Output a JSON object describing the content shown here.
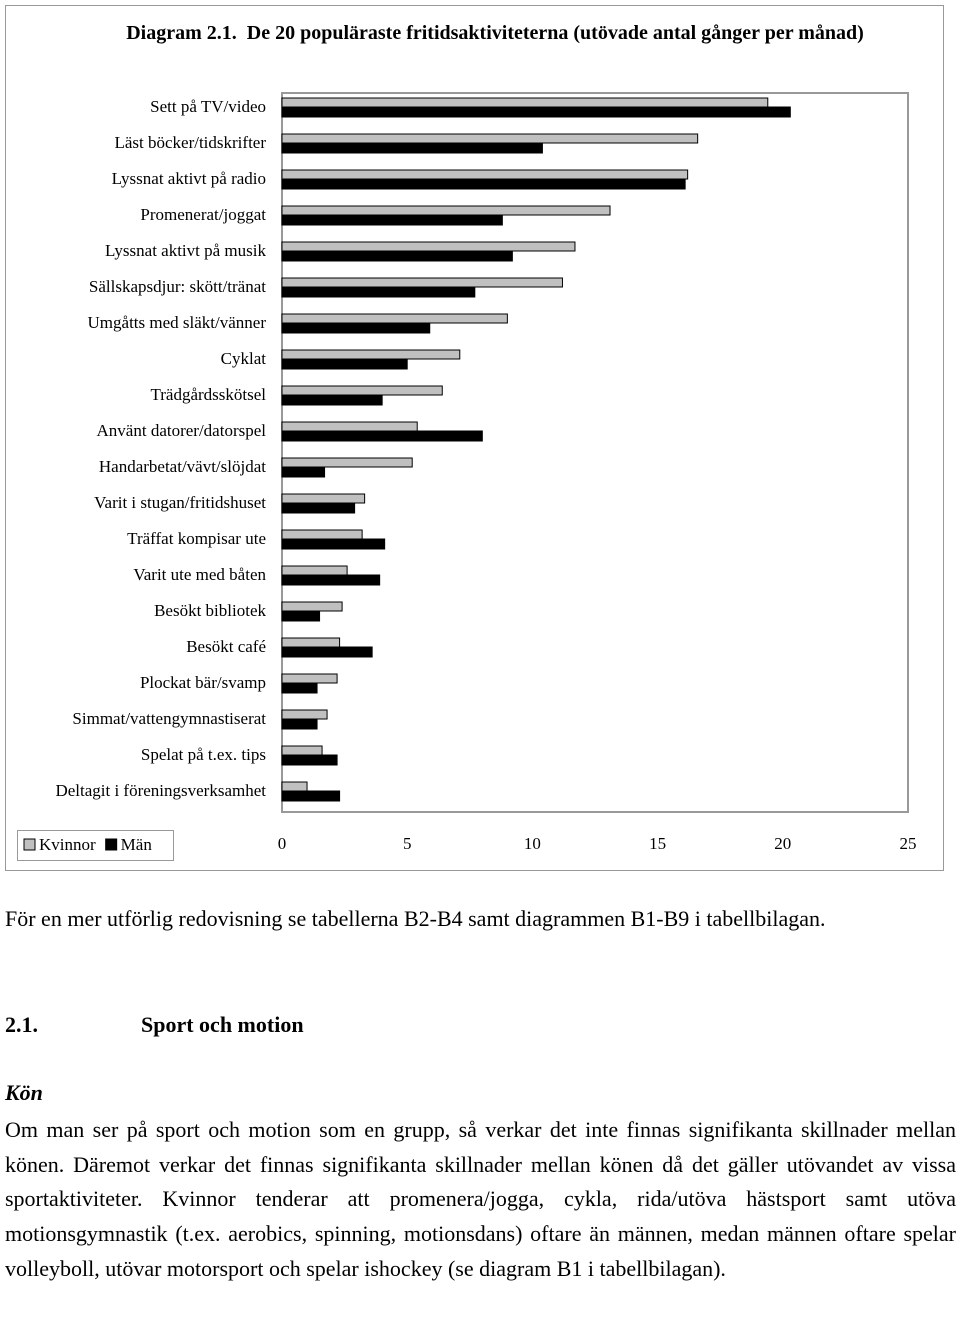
{
  "chart_data": {
    "type": "bar",
    "orientation": "horizontal",
    "title_label": "Diagram 2.1.",
    "title": "De 20 populäraste fritidsaktiviteterna (utövade antal gånger per månad)",
    "categories": [
      "Sett på TV/video",
      "Läst böcker/tidskrifter",
      "Lyssnat aktivt på radio",
      "Promenerat/joggat",
      "Lyssnat aktivt på musik",
      "Sällskapsdjur: skött/tränat",
      "Umgåtts med släkt/vänner",
      "Cyklat",
      "Trädgårdsskötsel",
      "Använt datorer/datorspel",
      "Handarbetat/vävt/slöjdat",
      "Varit i stugan/fritidshuset",
      "Träffat kompisar ute",
      "Varit ute med båten",
      "Besökt bibliotek",
      "Besökt café",
      "Plockat bär/svamp",
      "Simmat/vattengymnastiserat",
      "Spelat på t.ex. tips",
      "Deltagit i föreningsverksamhet"
    ],
    "series": [
      {
        "name": "Kvinnor",
        "color": "#c0c0c0",
        "values": [
          19.4,
          16.6,
          16.2,
          13.1,
          11.7,
          11.2,
          9.0,
          7.1,
          6.4,
          5.4,
          5.2,
          3.3,
          3.2,
          2.6,
          2.4,
          2.3,
          2.2,
          1.8,
          1.6,
          1.0
        ]
      },
      {
        "name": "Män",
        "color": "#000000",
        "values": [
          20.3,
          10.4,
          16.1,
          8.8,
          9.2,
          7.7,
          5.9,
          5.0,
          4.0,
          8.0,
          1.7,
          2.9,
          4.1,
          3.9,
          1.5,
          3.6,
          1.4,
          1.4,
          2.2,
          2.3
        ]
      }
    ],
    "xlim": [
      0,
      25
    ],
    "xticks": [
      0,
      5,
      10,
      15,
      20,
      25
    ],
    "legend": "bottom-left"
  },
  "caption": "För en mer utförlig redovisning se tabellerna B2-B4 samt diagrammen B1-B9 i tabellbilagan.",
  "section": {
    "number": "2.1.",
    "title": "Sport och motion"
  },
  "subheading": "Kön",
  "paragraph": "Om man ser på sport och motion som en grupp, så verkar det inte finnas signifikanta skillnader mellan könen. Däremot verkar det finnas signifikanta skillnader mellan könen då det gäller utövandet av vissa sportaktiviteter. Kvinnor tenderar att promenera/jogga, cykla, rida/utöva hästsport samt utöva motionsgymnastik (t.ex. aerobics, spinning, motionsdans) oftare än männen, medan männen oftare spelar volleyboll, utövar motorsport och spelar ishockey (se diagram B1 i tabellbilagan)."
}
